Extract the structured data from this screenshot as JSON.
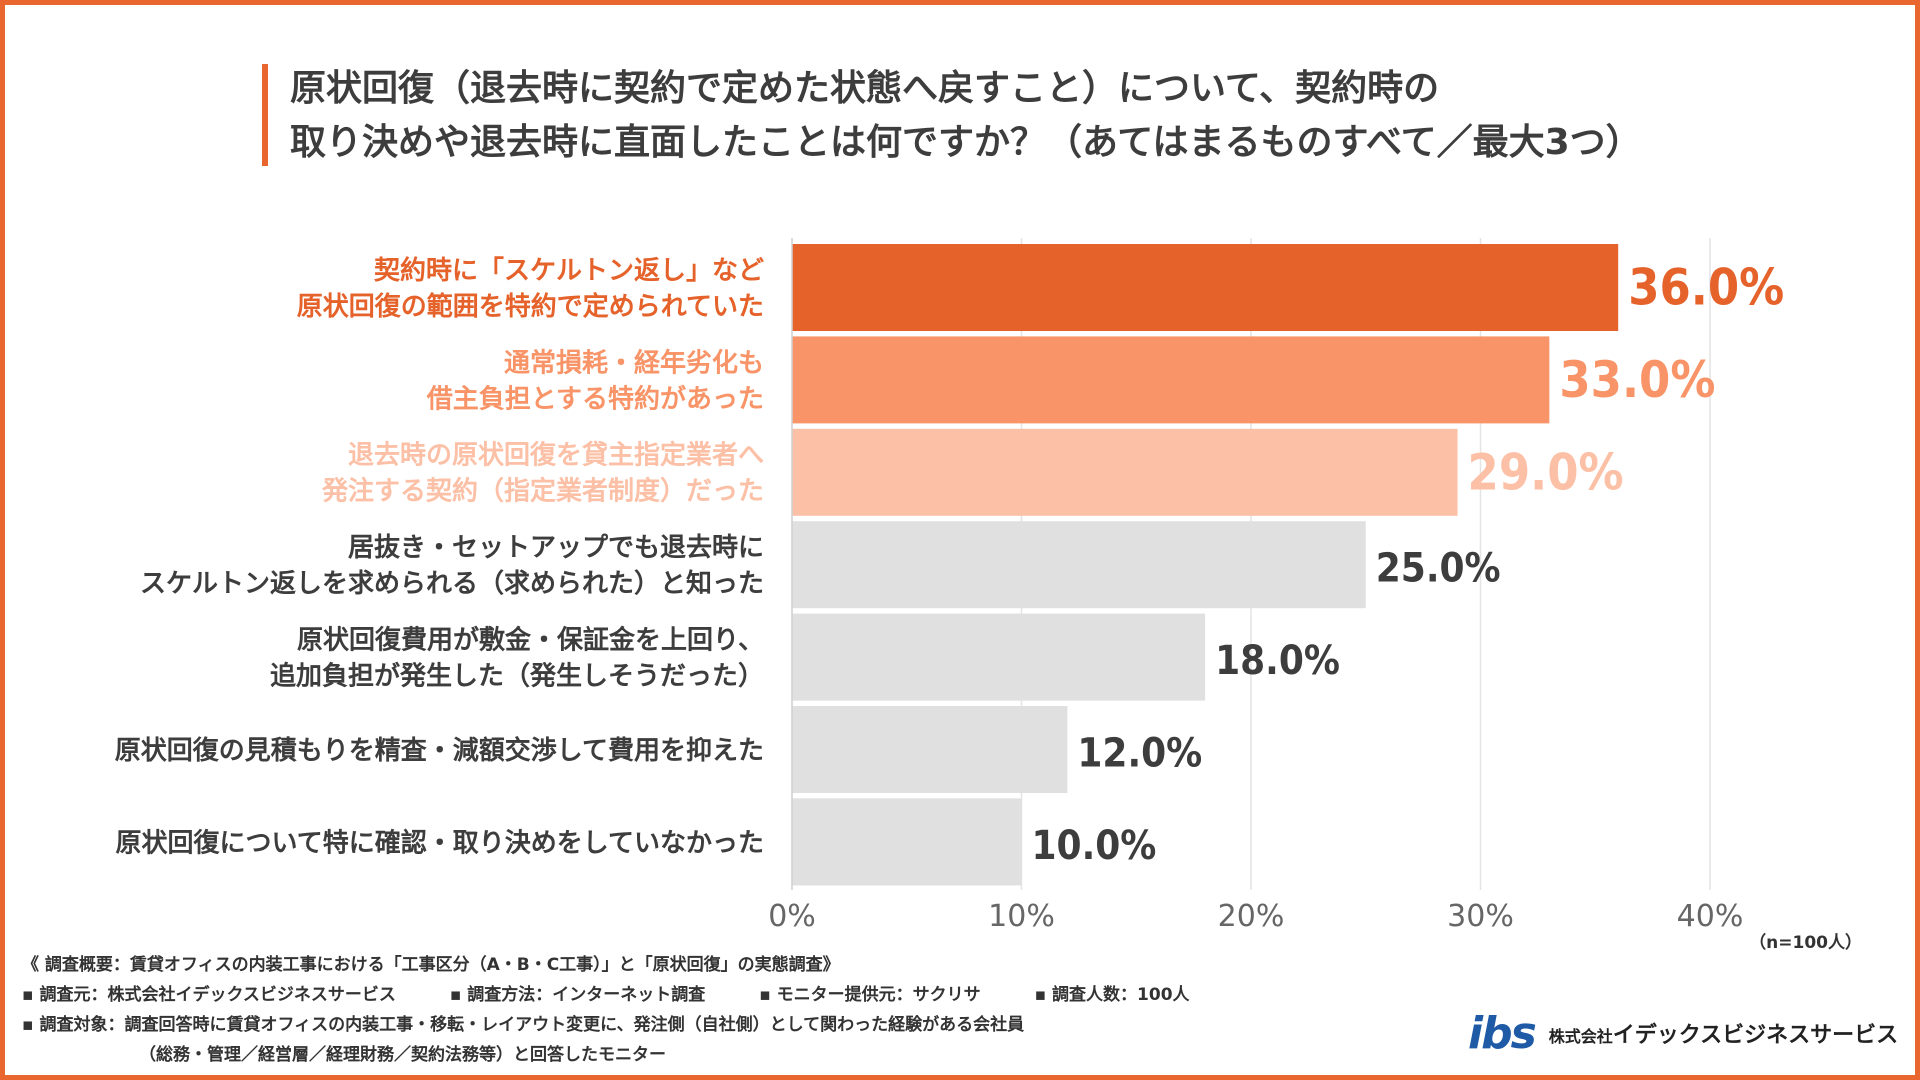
{
  "title": {
    "line1": "原状回復（退去時に契約で定めた状態へ戻すこと）について、契約時の",
    "line2": "取り決めや退去時に直面したことは何ですか？（あてはまるものすべて／最大3つ）"
  },
  "chart_data": {
    "type": "bar",
    "orientation": "horizontal",
    "categories": [
      [
        "契約時に「スケルトン返し」など",
        "原状回復の範囲を特約で定められていた"
      ],
      [
        "通常損耗・経年劣化も",
        "借主負担とする特約があった"
      ],
      [
        "退去時の原状回復を貸主指定業者へ",
        "発注する契約（指定業者制度）だった"
      ],
      [
        "居抜き・セットアップでも退去時に",
        "スケルトン返しを求められる（求められた）と知った"
      ],
      [
        "原状回復費用が敷金・保証金を上回り、",
        "追加負担が発生した（発生しそうだった）"
      ],
      [
        "原状回復の見積もりを精査・減額交渉して費用を抑えた"
      ],
      [
        "原状回復について特に確認・取り決めをしていなかった"
      ]
    ],
    "values": [
      36.0,
      33.0,
      29.0,
      25.0,
      18.0,
      12.0,
      10.0
    ],
    "value_labels": [
      "36.0%",
      "33.0%",
      "29.0%",
      "25.0%",
      "18.0%",
      "12.0%",
      "10.0%"
    ],
    "bar_colors": [
      "#e5622b",
      "#f89467",
      "#fcc0a6",
      "#e0e0e0",
      "#e0e0e0",
      "#e0e0e0",
      "#e0e0e0"
    ],
    "label_colors": [
      "#e5622b",
      "#f89467",
      "#fcc0a6",
      "#3d3d3d",
      "#3d3d3d",
      "#3d3d3d",
      "#3d3d3d"
    ],
    "xlim": [
      0,
      40
    ],
    "x_ticks": [
      "0%",
      "10%",
      "20%",
      "30%",
      "40%"
    ],
    "grid": true,
    "note": "（n=100人）"
  },
  "footer": {
    "overview": "《 調査概要：賃貸オフィスの内装工事における「工事区分（A・B・C工事）」と「原状回復」の実態調査》",
    "source": "▪ 調査元：株式会社イデックスビジネスサービス",
    "method": "▪ 調査方法：インターネット調査",
    "monitor": "▪ モニター提供元：サクリサ",
    "count": "▪ 調査人数：100人",
    "target1": "▪ 調査対象：調査回答時に賃貸オフィスの内装工事・移転・レイアウト変更に、発注側（自社側）として関わった経験がある会社員",
    "target2": "（総務・管理／経営層／経理財務／契約法務等）と回答したモニター"
  },
  "brand": {
    "logo": "ibs",
    "prefix": "株式会社",
    "name": "イデックスビジネスサービス",
    "color": "#1f5aa6"
  }
}
